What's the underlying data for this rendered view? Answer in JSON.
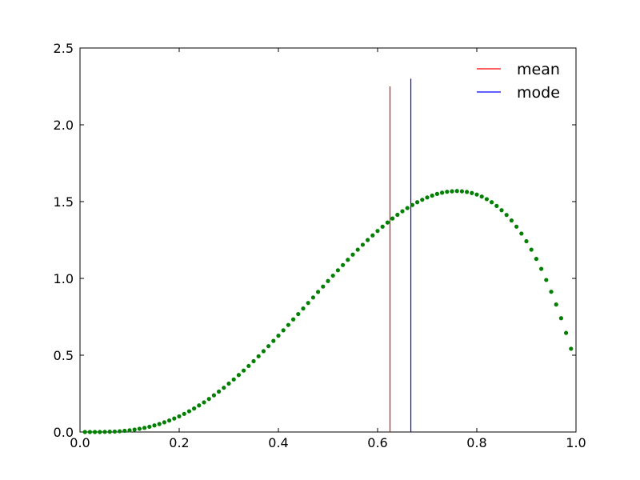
{
  "chart_data": {
    "type": "scatter",
    "title": "",
    "xlabel": "",
    "ylabel": "",
    "xlim": [
      0.0,
      1.0
    ],
    "ylim": [
      0.0,
      2.5
    ],
    "grid": false,
    "legend_position": "top-right",
    "x_ticks": [
      "0.0",
      "0.2",
      "0.4",
      "0.6",
      "0.8",
      "1.0"
    ],
    "y_ticks": [
      "0.0",
      "0.5",
      "1.0",
      "1.5",
      "2.0",
      "2.5"
    ],
    "series": [
      {
        "marker": "dot",
        "color": "#007f00",
        "x": [
          0.01,
          0.02,
          0.03,
          0.04,
          0.05,
          0.06,
          0.07,
          0.08,
          0.09,
          0.1,
          0.11,
          0.12,
          0.13,
          0.14,
          0.15,
          0.16,
          0.17,
          0.18,
          0.19,
          0.2,
          0.21,
          0.22,
          0.23,
          0.24,
          0.25,
          0.26,
          0.27,
          0.28,
          0.29,
          0.3,
          0.31,
          0.32,
          0.33,
          0.34,
          0.35,
          0.36,
          0.37,
          0.38,
          0.39,
          0.4,
          0.41,
          0.42,
          0.43,
          0.44,
          0.45,
          0.46,
          0.47,
          0.48,
          0.49,
          0.5,
          0.51,
          0.52,
          0.53,
          0.54,
          0.55,
          0.56,
          0.57,
          0.58,
          0.59,
          0.6,
          0.61,
          0.62,
          0.63,
          0.64,
          0.65,
          0.66,
          0.67,
          0.68,
          0.69,
          0.7,
          0.71,
          0.72,
          0.73,
          0.74,
          0.75,
          0.76,
          0.77,
          0.78,
          0.79,
          0.8,
          0.81,
          0.82,
          0.83,
          0.84,
          0.85,
          0.86,
          0.87,
          0.88,
          0.89,
          0.9,
          0.91,
          0.92,
          0.93,
          0.94,
          0.95,
          0.96,
          0.97,
          0.98,
          0.99
        ],
        "y": [
          0.0,
          0.0,
          0.0,
          0.0,
          0.001,
          0.002,
          0.003,
          0.005,
          0.008,
          0.011,
          0.016,
          0.021,
          0.027,
          0.034,
          0.043,
          0.052,
          0.063,
          0.075,
          0.088,
          0.102,
          0.118,
          0.135,
          0.153,
          0.173,
          0.193,
          0.215,
          0.239,
          0.263,
          0.288,
          0.315,
          0.342,
          0.371,
          0.4,
          0.43,
          0.461,
          0.493,
          0.526,
          0.559,
          0.593,
          0.627,
          0.662,
          0.697,
          0.733,
          0.768,
          0.804,
          0.84,
          0.876,
          0.912,
          0.947,
          0.983,
          1.018,
          1.053,
          1.087,
          1.121,
          1.155,
          1.187,
          1.219,
          1.25,
          1.28,
          1.309,
          1.337,
          1.364,
          1.39,
          1.414,
          1.437,
          1.458,
          1.478,
          1.496,
          1.512,
          1.527,
          1.539,
          1.55,
          1.558,
          1.564,
          1.567,
          1.569,
          1.567,
          1.563,
          1.556,
          1.546,
          1.533,
          1.516,
          1.496,
          1.472,
          1.444,
          1.413,
          1.377,
          1.337,
          1.292,
          1.242,
          1.187,
          1.127,
          1.062,
          0.99,
          0.913,
          0.83,
          0.741,
          0.645,
          0.542
        ]
      }
    ],
    "vlines": [
      {
        "name": "mean",
        "x": 0.625,
        "y_top": 2.25,
        "color": "#ff0000"
      },
      {
        "name": "mode",
        "x": 0.667,
        "y_top": 2.3,
        "color": "#0000ff"
      }
    ]
  }
}
